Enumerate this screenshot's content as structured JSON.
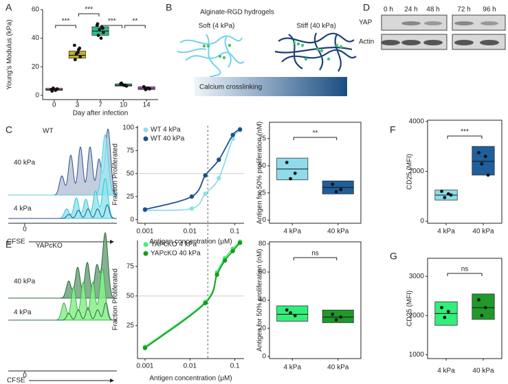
{
  "chart_data": [
    {
      "type": "box",
      "panel": "A",
      "ylabel": "Young's Modulus (kPa)",
      "xlabel": "Day after infection",
      "categories": [
        "0",
        "3",
        "7",
        "10",
        "14"
      ],
      "colors": [
        "#f08a86",
        "#bdb224",
        "#26c08a",
        "#22b5b8",
        "#d16fd9"
      ],
      "boxes": [
        {
          "q1": 3.5,
          "median": 4,
          "q3": 5,
          "points": [
            4,
            3.5,
            5,
            4.5,
            3
          ]
        },
        {
          "q1": 26,
          "median": 28,
          "q3": 31,
          "points": [
            35,
            32,
            29,
            27,
            25,
            30,
            33
          ]
        },
        {
          "q1": 42,
          "median": 45,
          "q3": 48,
          "points": [
            50,
            48,
            46,
            44,
            42,
            40,
            47,
            49
          ]
        },
        {
          "q1": 6.5,
          "median": 7,
          "q3": 8,
          "points": [
            8,
            7,
            7.5,
            6.5,
            8.5,
            7
          ]
        },
        {
          "q1": 4,
          "median": 5,
          "q3": 6,
          "points": [
            6,
            5,
            4,
            4.5,
            5.5
          ]
        }
      ],
      "ylim": [
        -3,
        60
      ],
      "yticks": [
        0,
        20,
        40,
        60
      ],
      "significance": [
        {
          "between": [
            "0",
            "3"
          ],
          "label": "***"
        },
        {
          "between": [
            "3",
            "7"
          ],
          "label": "***"
        },
        {
          "between": [
            "7",
            "10"
          ],
          "label": "***"
        },
        {
          "between": [
            "10",
            "14"
          ],
          "label": "**"
        }
      ]
    },
    {
      "type": "line",
      "panel": "C",
      "xlabel": "Antigen concentration (μM)",
      "ylabel": "Fraction Proliferated",
      "log_x": true,
      "x": [
        0.001,
        0.011,
        0.022,
        0.044,
        0.09,
        0.13
      ],
      "xlim": [
        0.00068,
        0.16
      ],
      "xticks": [
        0.001,
        0.01,
        0.1
      ],
      "ylim": [
        -4,
        102
      ],
      "yticks": [
        0,
        25,
        50,
        75,
        100
      ],
      "hline": 50,
      "vline": 0.025,
      "legend": "upper left",
      "series": [
        {
          "name": "WT 4 kPa",
          "color": "#8fdcec",
          "values": [
            10,
            12,
            28,
            45,
            88,
            97
          ]
        },
        {
          "name": "WT 40 kPa",
          "color": "#1e4e8c",
          "values": [
            11,
            25,
            48,
            65,
            92,
            98
          ]
        }
      ]
    },
    {
      "type": "box",
      "ylabel": "Antigen for 50% proliferation (nM)",
      "categories": [
        "4 kPa",
        "40 kPa"
      ],
      "colors": [
        "#8edcea",
        "#1f5f9a"
      ],
      "boxes": [
        {
          "q1": 37,
          "median": 47,
          "q3": 57,
          "points": [
            53,
            43,
            38
          ]
        },
        {
          "q1": 24,
          "median": 30,
          "q3": 36,
          "points": [
            33,
            28,
            26
          ]
        }
      ],
      "ylim": [
        -3,
        90
      ],
      "yticks": [
        0,
        25,
        50,
        75
      ],
      "significance": [
        {
          "between": [
            "4 kPa",
            "40 kPa"
          ],
          "label": "**"
        }
      ]
    },
    {
      "type": "box",
      "panel": "F",
      "ylabel": "CD25 (MFI)",
      "categories": [
        "4 kPa",
        "40 kPa"
      ],
      "colors": [
        "#8edcea",
        "#1f5f9a"
      ],
      "boxes": [
        {
          "q1": 850,
          "median": 1050,
          "q3": 1250,
          "points": [
            1200,
            1100,
            950,
            1050
          ]
        },
        {
          "q1": 1850,
          "median": 2400,
          "q3": 3000,
          "points": [
            2750,
            2600,
            2300,
            1850
          ]
        }
      ],
      "ylim": [
        -80,
        4050
      ],
      "yticks": [
        0,
        2000,
        4000
      ],
      "significance": [
        {
          "between": [
            "4 kPa",
            "40 kPa"
          ],
          "label": "***"
        }
      ]
    },
    {
      "type": "line",
      "panel": "E",
      "xlabel": "Antigen concentration (μM)",
      "ylabel": "Fraction Proliferated",
      "log_x": true,
      "x": [
        0.001,
        0.022,
        0.04,
        0.06,
        0.09,
        0.13
      ],
      "xlim": [
        0.00068,
        0.16
      ],
      "xticks": [
        0.001,
        0.01,
        0.1
      ],
      "ylim": [
        -3,
        97
      ],
      "yticks": [
        25,
        50,
        75
      ],
      "hline": 50,
      "vline": 0.025,
      "legend": "upper left",
      "series": [
        {
          "name": "YAPcKO 4 kPa",
          "color": "#40f080",
          "values": [
            7,
            45,
            70,
            82,
            90,
            96
          ]
        },
        {
          "name": "YAPcKO 40 kPa",
          "color": "#1a9a1a",
          "values": [
            6,
            44,
            68,
            80,
            88,
            95
          ]
        }
      ]
    },
    {
      "type": "box",
      "ylabel": "Antigen for 50% proliferation (nM)",
      "categories": [
        "4 kPa",
        "40 kPa"
      ],
      "colors": [
        "#33ee7a",
        "#1f9a2a"
      ],
      "boxes": [
        {
          "q1": 25,
          "median": 30,
          "q3": 36,
          "points": [
            33,
            29,
            31
          ]
        },
        {
          "q1": 24,
          "median": 28,
          "q3": 33,
          "points": [
            30,
            28,
            26
          ]
        }
      ],
      "ylim": [
        -1.5,
        81.5
      ],
      "yticks": [
        0,
        20,
        40,
        60,
        80
      ],
      "significance": [
        {
          "between": [
            "4 kPa",
            "40 kPa"
          ],
          "label": "ns"
        }
      ]
    },
    {
      "type": "box",
      "panel": "G",
      "ylabel": "CD25 (MFI)",
      "categories": [
        "4 kPa",
        "40 kPa"
      ],
      "colors": [
        "#33ee7a",
        "#1f9a2a"
      ],
      "boxes": [
        {
          "q1": 1750,
          "median": 2050,
          "q3": 2350,
          "points": [
            2200,
            2100,
            1950
          ]
        },
        {
          "q1": 1900,
          "median": 2200,
          "q3": 2550,
          "points": [
            2400,
            2200,
            2000
          ]
        }
      ],
      "ylim": [
        900,
        3460
      ],
      "yticks": [
        1000,
        2000,
        3000
      ],
      "significance": [
        {
          "between": [
            "4 kPa",
            "40 kPa"
          ],
          "label": "ns"
        }
      ]
    }
  ],
  "panel_b": {
    "panel": "B",
    "title": "Alginate-RGD hydrogels",
    "soft": "Soft (4 kPa)",
    "stiff": "Stiff (40 kPa)",
    "gradient_label": "Calcium crosslinking"
  },
  "panel_d": {
    "panel": "D",
    "times": [
      "0 h",
      "24 h",
      "48 h",
      "72 h",
      "96 h"
    ],
    "rows": [
      "YAP",
      "Actin"
    ]
  },
  "flow_c": {
    "title": "WT",
    "labels": [
      "40 kPa",
      "4 kPa"
    ],
    "axis_label": "CFSE",
    "tick": 0
  },
  "flow_e": {
    "title": "YAPcKO",
    "labels": [
      "40 kPa",
      "4 kPa"
    ],
    "axis_label": "CFSE",
    "tick": 0
  }
}
